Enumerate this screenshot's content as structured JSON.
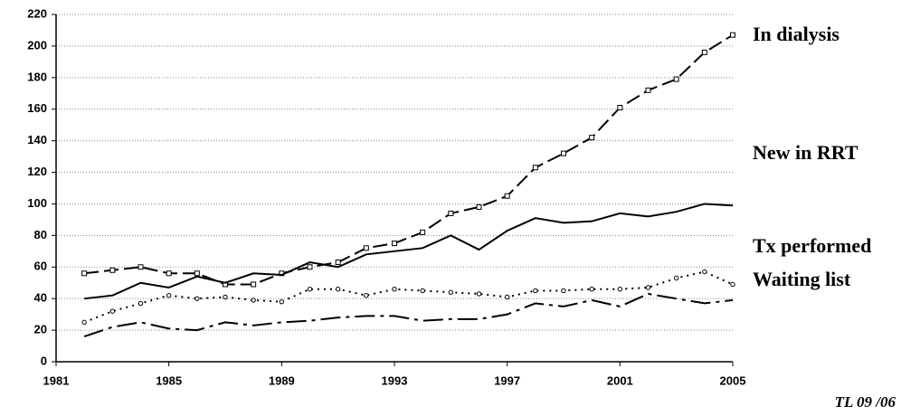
{
  "chart_data": {
    "type": "line",
    "x": [
      1982,
      1983,
      1984,
      1985,
      1986,
      1987,
      1988,
      1989,
      1990,
      1991,
      1992,
      1993,
      1994,
      1995,
      1996,
      1997,
      1998,
      1999,
      2000,
      2001,
      2002,
      2003,
      2004,
      2005
    ],
    "series": [
      {
        "name": "In dialysis",
        "color": "#000000",
        "style": "dashed",
        "marker": "square",
        "values": [
          56,
          58,
          60,
          56,
          56,
          49,
          49,
          56,
          60,
          63,
          72,
          75,
          82,
          94,
          98,
          105,
          123,
          132,
          142,
          161,
          172,
          179,
          196,
          207
        ]
      },
      {
        "name": "New in RRT",
        "color": "#000000",
        "style": "solid",
        "marker": "none",
        "values": [
          40,
          42,
          50,
          47,
          54,
          50,
          56,
          55,
          63,
          60,
          68,
          70,
          72,
          80,
          71,
          83,
          91,
          88,
          89,
          94,
          92,
          95,
          100,
          99
        ]
      },
      {
        "name": "Tx performed",
        "color": "#000000",
        "style": "dotted",
        "marker": "circle",
        "values": [
          25,
          32,
          37,
          42,
          40,
          41,
          39,
          38,
          46,
          46,
          42,
          46,
          45,
          44,
          43,
          41,
          45,
          45,
          46,
          46,
          47,
          53,
          57,
          49
        ]
      },
      {
        "name": "Waiting list",
        "color": "#000000",
        "style": "dashdot",
        "marker": "none",
        "values": [
          16,
          22,
          25,
          21,
          20,
          25,
          23,
          25,
          26,
          28,
          29,
          29,
          26,
          27,
          27,
          30,
          37,
          35,
          39,
          35,
          43,
          40,
          37,
          39
        ]
      }
    ],
    "xlim": [
      1981,
      2005
    ],
    "xticks": [
      1981,
      1985,
      1989,
      1993,
      1997,
      2001,
      2005
    ],
    "ylim": [
      0,
      220
    ],
    "yticks": [
      0,
      20,
      40,
      60,
      80,
      100,
      120,
      140,
      160,
      180,
      200,
      220
    ],
    "grid": true,
    "annotation": "TL 09 /06"
  }
}
